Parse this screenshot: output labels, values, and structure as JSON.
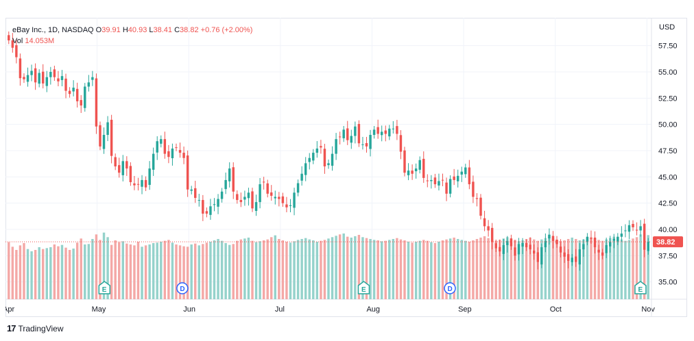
{
  "header": {
    "symbol": "eBay Inc., 1D, NASDAQ",
    "o_label": "O",
    "o_value": "39.91",
    "h_label": "H",
    "h_value": "40.93",
    "l_label": "L",
    "l_value": "38.41",
    "c_label": "C",
    "c_value": "38.82",
    "change": "+0.76 (+2.00%)",
    "vol_label": "Vol",
    "vol_value": "14.053M"
  },
  "brand": {
    "name": "TradingView",
    "logo_text": "17"
  },
  "colors": {
    "up": "#26a69a",
    "down": "#ef5350",
    "vol_up": "#95d2cb",
    "vol_down": "#f4a8a6",
    "grid": "#f0f3fa"
  },
  "chart_data": {
    "type": "candlestick",
    "currency": "USD",
    "last_price": "38.82",
    "y_ticks": [
      "57.50",
      "55.00",
      "52.50",
      "50.00",
      "47.50",
      "45.00",
      "42.50",
      "40.00",
      "37.50",
      "35.00"
    ],
    "x_ticks": [
      "Apr",
      "May",
      "Jun",
      "Jul",
      "Aug",
      "Sep",
      "Oct",
      "Nov"
    ],
    "ylim": [
      34.0,
      59.5
    ],
    "events": [
      {
        "symbol": "E",
        "month": "May"
      },
      {
        "symbol": "D",
        "month": "Jun"
      },
      {
        "symbol": "E",
        "month": "Aug"
      },
      {
        "symbol": "D",
        "month": "Sep"
      },
      {
        "symbol": "E",
        "month": "Nov"
      }
    ],
    "closes": [
      58.0,
      57.3,
      56.4,
      54.4,
      54.3,
      54.7,
      55.1,
      54.0,
      54.9,
      53.9,
      54.5,
      55.0,
      54.5,
      54.1,
      54.6,
      53.2,
      52.9,
      53.5,
      52.2,
      51.8,
      53.6,
      54.0,
      54.5,
      49.8,
      47.9,
      49.0,
      50.2,
      47.0,
      46.0,
      45.4,
      46.5,
      45.8,
      44.5,
      44.2,
      44.3,
      44.7,
      44.0,
      45.8,
      47.2,
      48.4,
      48.6,
      47.2,
      46.9,
      47.7,
      47.8,
      47.3,
      46.8,
      43.8,
      43.8,
      43.0,
      42.8,
      41.5,
      41.5,
      42.2,
      42.4,
      42.9,
      43.6,
      44.7,
      45.8,
      43.6,
      42.8,
      42.6,
      43.1,
      43.5,
      42.0,
      42.6,
      44.3,
      44.5,
      43.4,
      43.2,
      43.1,
      42.9,
      42.5,
      42.1,
      42.3,
      43.5,
      44.4,
      45.3,
      46.3,
      46.8,
      47.3,
      47.7,
      47.8,
      46.0,
      46.3,
      47.2,
      48.6,
      48.8,
      49.5,
      48.5,
      48.9,
      49.8,
      48.2,
      48.1,
      47.9,
      49.0,
      49.5,
      49.1,
      49.3,
      49.1,
      49.6,
      49.6,
      49.1,
      47.4,
      45.4,
      45.6,
      45.3,
      45.8,
      46.6,
      44.9,
      44.6,
      44.7,
      44.3,
      44.6,
      44.7,
      43.4,
      44.8,
      44.7,
      45.1,
      45.5,
      45.9,
      44.3,
      43.1,
      42.9,
      41.3,
      40.3,
      39.9,
      38.8,
      38.2,
      37.9,
      38.5,
      38.9,
      38.4,
      37.5,
      38.6,
      38.7,
      38.3,
      38.1,
      37.7,
      36.9,
      38.3,
      38.9,
      39.5,
      38.9,
      38.6,
      37.8,
      37.4,
      37.0,
      37.3,
      36.9,
      38.1,
      38.6,
      39.3,
      39.1,
      38.3,
      37.8,
      37.5,
      38.5,
      38.8,
      39.1,
      39.3,
      39.6,
      39.9,
      40.4,
      40.2,
      39.9,
      40.3,
      38.06,
      38.82
    ],
    "volumes": [
      12.5,
      11.5,
      10.8,
      11.8,
      12.3,
      11.0,
      10.5,
      10.8,
      11.4,
      11.0,
      11.2,
      11.4,
      12.0,
      11.6,
      11.9,
      11.3,
      10.8,
      11.1,
      12.4,
      13.3,
      12.0,
      12.1,
      13.2,
      14.2,
      13.0,
      14.6,
      13.6,
      11.9,
      12.9,
      12.5,
      12.7,
      12.2,
      12.0,
      11.8,
      12.6,
      11.5,
      11.8,
      12.0,
      12.3,
      12.4,
      12.6,
      12.8,
      13.0,
      12.4,
      12.0,
      11.8,
      11.6,
      11.5,
      12.0,
      12.2,
      11.8,
      12.1,
      12.4,
      12.6,
      12.9,
      13.2,
      12.8,
      12.3,
      11.9,
      12.1,
      12.8,
      13.1,
      13.3,
      13.5,
      12.8,
      12.5,
      12.7,
      12.9,
      13.1,
      13.6,
      14.0,
      13.2,
      12.9,
      12.6,
      12.4,
      12.7,
      13.0,
      13.2,
      13.4,
      13.1,
      12.9,
      12.6,
      12.8,
      13.0,
      13.3,
      13.6,
      13.9,
      14.2,
      14.4,
      13.7,
      13.5,
      13.8,
      14.1,
      13.6,
      13.4,
      13.2,
      13.0,
      12.9,
      12.7,
      12.8,
      13.0,
      13.2,
      13.4,
      13.1,
      12.9,
      12.6,
      12.4,
      12.6,
      12.8,
      13.0,
      12.8,
      12.5,
      12.3,
      12.6,
      12.9,
      13.1,
      13.3,
      13.5,
      13.2,
      13.0,
      12.8,
      12.6,
      12.9,
      13.2,
      13.5,
      13.8,
      13.4,
      13.1,
      12.8,
      13.0,
      13.3,
      13.6,
      13.3,
      13.0,
      12.7,
      12.9,
      13.2,
      13.5,
      13.1,
      12.8,
      13.1,
      13.4,
      13.7,
      13.3,
      13.0,
      12.7,
      12.9,
      13.2,
      13.5,
      13.2,
      12.9,
      13.1,
      13.4,
      13.6,
      13.3,
      13.0,
      12.8,
      13.1,
      13.4,
      13.7,
      13.4,
      13.1,
      12.8,
      13.0,
      13.3,
      13.6,
      14.2,
      14.6,
      14.053
    ]
  }
}
